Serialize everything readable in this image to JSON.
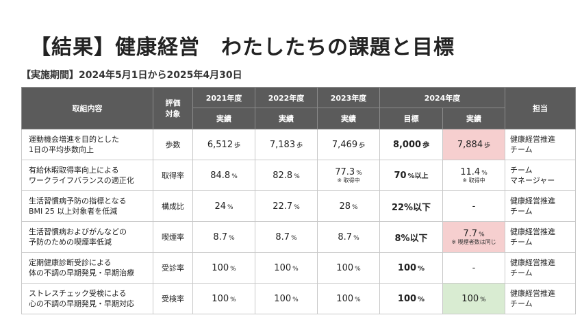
{
  "title": "【結果】健康経営　わたしたちの課題と目標",
  "period": "【実施期間】2024年5月1日から2025年4月30日",
  "colors": {
    "header_bg": "#5b5b5b",
    "highlight_pink": "#f6cfcf",
    "highlight_green": "#d9ecd2"
  },
  "table": {
    "headers": {
      "item": "取組内容",
      "metric_line1": "評価",
      "metric_line2": "対象",
      "y2021": "2021年度",
      "y2022": "2022年度",
      "y2023": "2023年度",
      "y2024": "2024年度",
      "owner": "担当",
      "actual": "実績",
      "target": "目標"
    },
    "rows": [
      {
        "item1": "運動機会増進を目的とした",
        "item2": "1日の平均歩数向上",
        "metric": "歩数",
        "v2021": "6,512",
        "u2021": "歩",
        "v2022": "7,183",
        "u2022": "歩",
        "v2023": "7,469",
        "u2023": "歩",
        "target": "8,000",
        "target_unit": "歩",
        "v2024": "7,884",
        "u2024": "歩",
        "owner1": "健康経営推進",
        "owner2": "チーム"
      },
      {
        "item1": "有給休暇取得率向上による",
        "item2": "ワークライフバランスの適正化",
        "metric": "取得率",
        "v2021": "84.8",
        "u2021": "%",
        "v2022": "82.8",
        "u2022": "%",
        "v2023": "77.3",
        "u2023": "%",
        "note2023": "※ 取得中",
        "target": "70",
        "target_unit": "%以上",
        "v2024": "11.4",
        "u2024": "%",
        "note2024": "※ 取得中",
        "owner1": "チーム",
        "owner2": "マネージャー"
      },
      {
        "item1": "生活習慣病予防の指標となる",
        "item2": "BMI 25 以上対象者を低減",
        "metric": "構成比",
        "v2021": "24",
        "u2021": "%",
        "v2022": "22.7",
        "u2022": "%",
        "v2023": "28",
        "u2023": "%",
        "target": "22%以下",
        "v2024": "-",
        "owner1": "健康経営推進",
        "owner2": "チーム"
      },
      {
        "item1": "生活習慣病およびがんなどの",
        "item2": "予防のための喫煙率低減",
        "metric": "喫煙率",
        "v2021": "8.7",
        "u2021": "%",
        "v2022": "8.7",
        "u2022": "%",
        "v2023": "8.7",
        "u2023": "%",
        "target": "8%以下",
        "v2024": "7.7",
        "u2024": "%",
        "note2024": "※ 喫煙者数は同じ",
        "owner1": "健康経営推進",
        "owner2": "チーム"
      },
      {
        "item1": "定期健康診断受診による",
        "item2": "体の不調の早期発見・早期治療",
        "metric": "受診率",
        "v2021": "100",
        "u2021": "%",
        "v2022": "100",
        "u2022": "%",
        "v2023": "100",
        "u2023": "%",
        "target": "100",
        "target_unit": "%",
        "v2024": "-",
        "owner1": "健康経営推進",
        "owner2": "チーム"
      },
      {
        "item1": "ストレスチェック受検による",
        "item2": "心の不調の早期発見・早期対応",
        "metric": "受検率",
        "v2021": "100",
        "u2021": "%",
        "v2022": "100",
        "u2022": "%",
        "v2023": "100",
        "u2023": "%",
        "target": "100",
        "target_unit": "%",
        "v2024": "100",
        "u2024": "%",
        "owner1": "健康経営推進",
        "owner2": "チーム"
      }
    ]
  }
}
